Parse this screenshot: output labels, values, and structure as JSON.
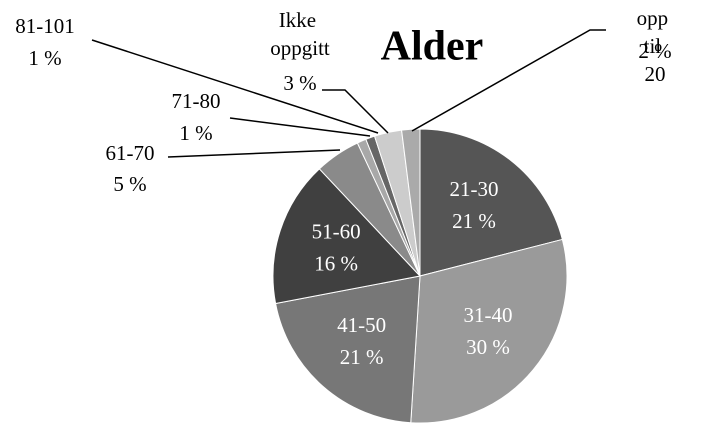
{
  "chart_data": {
    "type": "pie",
    "title": "Alder",
    "categories": [
      "21-30",
      "31-40",
      "41-50",
      "51-60",
      "61-70",
      "71-80",
      "81-101",
      "Ikke oppgitt",
      "opp til 20"
    ],
    "values": [
      21,
      30,
      21,
      16,
      5,
      1,
      1,
      3,
      2
    ],
    "value_labels": [
      "21 %",
      "30 %",
      "21 %",
      "16 %",
      "5 %",
      "1 %",
      "1 %",
      "3 %",
      "2 %"
    ],
    "colors": [
      "#555555",
      "#9a9a9a",
      "#777777",
      "#404040",
      "#8a8a8a",
      "#a8a8a8",
      "#666666",
      "#cccccc",
      "#aaaaaa"
    ]
  }
}
